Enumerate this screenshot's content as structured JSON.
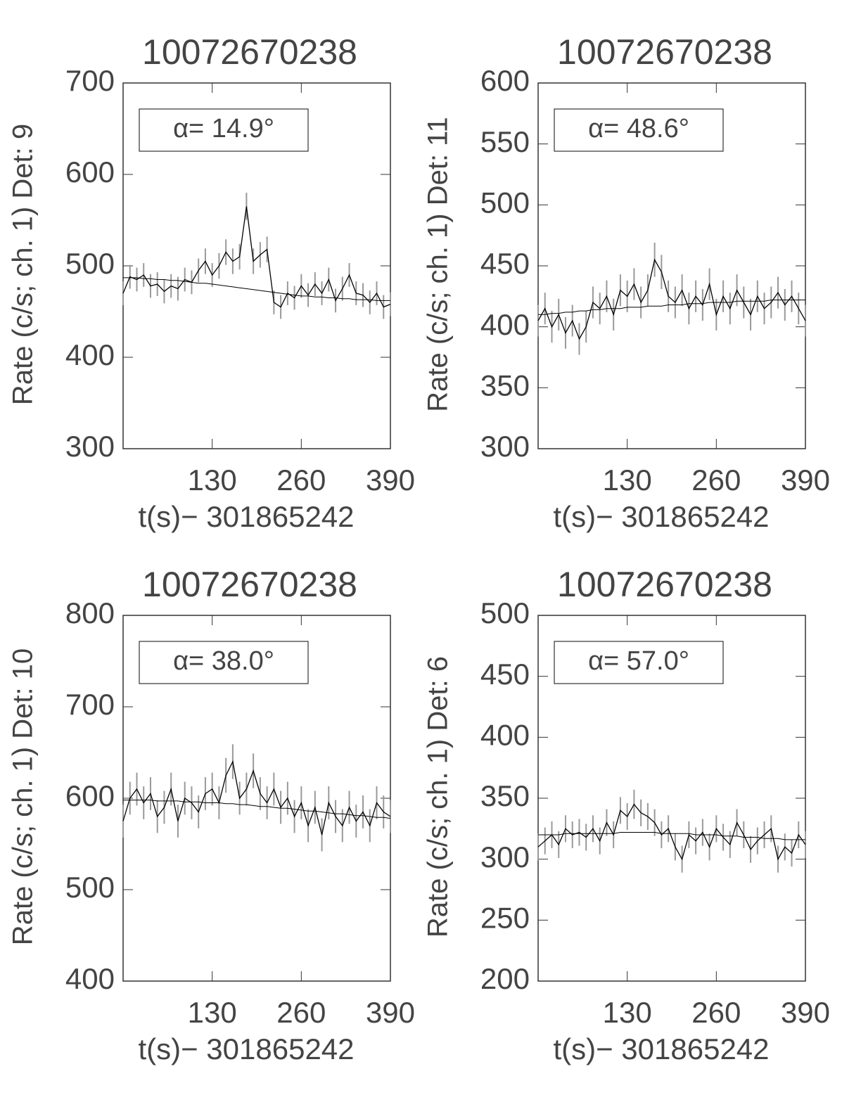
{
  "chart_data": [
    {
      "type": "line",
      "title": "10072670238",
      "xlabel": "t(s)− 301865242",
      "ylabel": "Rate (c/s; ch. 1) Det: 9",
      "annotation": "α= 14.9°",
      "x": [
        0,
        10,
        20,
        30,
        40,
        50,
        60,
        70,
        80,
        90,
        100,
        110,
        120,
        130,
        140,
        150,
        160,
        170,
        180,
        190,
        200,
        210,
        220,
        230,
        240,
        250,
        260,
        270,
        280,
        290,
        300,
        310,
        320,
        330,
        340,
        350,
        360,
        370,
        380,
        390
      ],
      "xlim": [
        0,
        390
      ],
      "xticks": [
        130,
        260,
        390
      ],
      "ylim": [
        300,
        700
      ],
      "yticks": [
        300,
        400,
        500,
        600,
        700
      ],
      "series": [
        {
          "color": "#000000",
          "error_color": "#999999",
          "values": [
            470,
            488,
            485,
            490,
            478,
            480,
            472,
            478,
            475,
            485,
            482,
            495,
            505,
            490,
            500,
            515,
            505,
            510,
            565,
            505,
            512,
            518,
            460,
            455,
            470,
            465,
            478,
            468,
            480,
            470,
            485,
            462,
            475,
            490,
            470,
            468,
            460,
            470,
            455,
            458
          ],
          "errors": [
            13,
            13,
            13,
            13,
            13,
            13,
            13,
            13,
            13,
            13,
            13,
            13,
            14,
            13,
            14,
            14,
            14,
            14,
            15,
            14,
            14,
            14,
            13,
            13,
            13,
            13,
            13,
            13,
            13,
            13,
            13,
            13,
            13,
            13,
            13,
            13,
            13,
            13,
            13,
            13
          ]
        },
        {
          "color": "#000000",
          "values": [
            487,
            487,
            487,
            486,
            486,
            485,
            485,
            484,
            484,
            483,
            482,
            481,
            481,
            480,
            479,
            478,
            477,
            476,
            475,
            474,
            473,
            472,
            471,
            470,
            469,
            468,
            467,
            467,
            466,
            466,
            465,
            465,
            464,
            464,
            463,
            463,
            463,
            462,
            462,
            462
          ]
        }
      ]
    },
    {
      "type": "line",
      "title": "10072670238",
      "xlabel": "t(s)− 301865242",
      "ylabel": "Rate (c/s; ch. 1) Det: 11",
      "annotation": "α= 48.6°",
      "x": [
        0,
        10,
        20,
        30,
        40,
        50,
        60,
        70,
        80,
        90,
        100,
        110,
        120,
        130,
        140,
        150,
        160,
        170,
        180,
        190,
        200,
        210,
        220,
        230,
        240,
        250,
        260,
        270,
        280,
        290,
        300,
        310,
        320,
        330,
        340,
        350,
        360,
        370,
        380,
        390
      ],
      "xlim": [
        0,
        390
      ],
      "xticks": [
        130,
        260,
        390
      ],
      "ylim": [
        300,
        600
      ],
      "yticks": [
        300,
        350,
        400,
        450,
        500,
        550,
        600
      ],
      "series": [
        {
          "color": "#000000",
          "error_color": "#999999",
          "values": [
            405,
            415,
            400,
            410,
            395,
            405,
            390,
            400,
            420,
            415,
            425,
            410,
            430,
            425,
            435,
            420,
            430,
            455,
            445,
            425,
            420,
            430,
            415,
            425,
            418,
            435,
            410,
            425,
            415,
            430,
            420,
            410,
            425,
            415,
            420,
            428,
            418,
            425,
            415,
            405
          ],
          "errors": [
            13,
            13,
            13,
            13,
            13,
            13,
            13,
            13,
            13,
            13,
            13,
            13,
            13,
            13,
            13,
            13,
            13,
            14,
            14,
            13,
            13,
            13,
            13,
            13,
            13,
            13,
            13,
            13,
            13,
            13,
            13,
            13,
            13,
            13,
            13,
            13,
            13,
            13,
            13,
            13
          ]
        },
        {
          "color": "#000000",
          "values": [
            410,
            410,
            411,
            411,
            412,
            412,
            413,
            413,
            414,
            414,
            415,
            415,
            415,
            416,
            416,
            416,
            417,
            417,
            417,
            418,
            418,
            418,
            419,
            419,
            419,
            420,
            420,
            420,
            420,
            421,
            421,
            421,
            421,
            421,
            422,
            422,
            422,
            422,
            422,
            422
          ]
        }
      ]
    },
    {
      "type": "line",
      "title": "10072670238",
      "xlabel": "t(s)− 301865242",
      "ylabel": "Rate (c/s; ch. 1) Det: 10",
      "annotation": "α= 38.0°",
      "x": [
        0,
        10,
        20,
        30,
        40,
        50,
        60,
        70,
        80,
        90,
        100,
        110,
        120,
        130,
        140,
        150,
        160,
        170,
        180,
        190,
        200,
        210,
        220,
        230,
        240,
        250,
        260,
        270,
        280,
        290,
        300,
        310,
        320,
        330,
        340,
        350,
        360,
        370,
        380,
        390
      ],
      "xlim": [
        0,
        390
      ],
      "xticks": [
        130,
        260,
        390
      ],
      "ylim": [
        400,
        800
      ],
      "yticks": [
        400,
        500,
        600,
        700,
        800
      ],
      "series": [
        {
          "color": "#000000",
          "error_color": "#999999",
          "values": [
            575,
            600,
            610,
            595,
            605,
            580,
            590,
            610,
            575,
            600,
            595,
            585,
            605,
            610,
            595,
            625,
            640,
            600,
            610,
            630,
            605,
            595,
            610,
            590,
            600,
            580,
            595,
            570,
            590,
            560,
            595,
            580,
            570,
            590,
            575,
            585,
            570,
            595,
            585,
            580
          ],
          "errors": [
            18,
            18,
            18,
            18,
            18,
            18,
            18,
            18,
            18,
            18,
            18,
            18,
            18,
            18,
            18,
            19,
            19,
            18,
            18,
            19,
            18,
            18,
            18,
            18,
            18,
            18,
            18,
            18,
            18,
            18,
            18,
            18,
            18,
            18,
            18,
            18,
            18,
            18,
            18,
            18
          ]
        },
        {
          "color": "#000000",
          "values": [
            598,
            598,
            598,
            598,
            598,
            597,
            597,
            597,
            597,
            596,
            596,
            596,
            595,
            595,
            595,
            594,
            594,
            593,
            593,
            592,
            591,
            591,
            590,
            589,
            589,
            588,
            587,
            586,
            586,
            585,
            584,
            583,
            583,
            582,
            581,
            581,
            580,
            579,
            579,
            578
          ]
        }
      ]
    },
    {
      "type": "line",
      "title": "10072670238",
      "xlabel": "t(s)− 301865242",
      "ylabel": "Rate (c/s; ch. 1) Det: 6",
      "annotation": "α= 57.0°",
      "x": [
        0,
        10,
        20,
        30,
        40,
        50,
        60,
        70,
        80,
        90,
        100,
        110,
        120,
        130,
        140,
        150,
        160,
        170,
        180,
        190,
        200,
        210,
        220,
        230,
        240,
        250,
        260,
        270,
        280,
        290,
        300,
        310,
        320,
        330,
        340,
        350,
        360,
        370,
        380,
        390
      ],
      "xlim": [
        0,
        390
      ],
      "xticks": [
        130,
        260,
        390
      ],
      "ylim": [
        200,
        500
      ],
      "yticks": [
        200,
        250,
        300,
        350,
        400,
        450,
        500
      ],
      "series": [
        {
          "color": "#000000",
          "error_color": "#999999",
          "values": [
            310,
            315,
            320,
            312,
            325,
            320,
            322,
            318,
            325,
            315,
            330,
            320,
            340,
            335,
            345,
            338,
            335,
            330,
            320,
            325,
            310,
            300,
            320,
            315,
            322,
            310,
            325,
            318,
            312,
            330,
            320,
            308,
            315,
            320,
            325,
            300,
            310,
            305,
            320,
            312
          ],
          "errors": [
            11,
            11,
            11,
            11,
            11,
            11,
            11,
            11,
            11,
            11,
            11,
            11,
            11,
            11,
            12,
            11,
            11,
            11,
            11,
            11,
            11,
            11,
            11,
            11,
            11,
            11,
            11,
            11,
            11,
            11,
            11,
            11,
            11,
            11,
            11,
            11,
            11,
            11,
            11,
            11
          ]
        },
        {
          "color": "#000000",
          "values": [
            320,
            320,
            320,
            320,
            321,
            321,
            321,
            321,
            321,
            321,
            321,
            321,
            322,
            322,
            322,
            322,
            322,
            322,
            321,
            321,
            321,
            321,
            321,
            320,
            320,
            320,
            320,
            319,
            319,
            319,
            318,
            318,
            318,
            317,
            317,
            317,
            316,
            316,
            316,
            316
          ]
        }
      ]
    }
  ]
}
